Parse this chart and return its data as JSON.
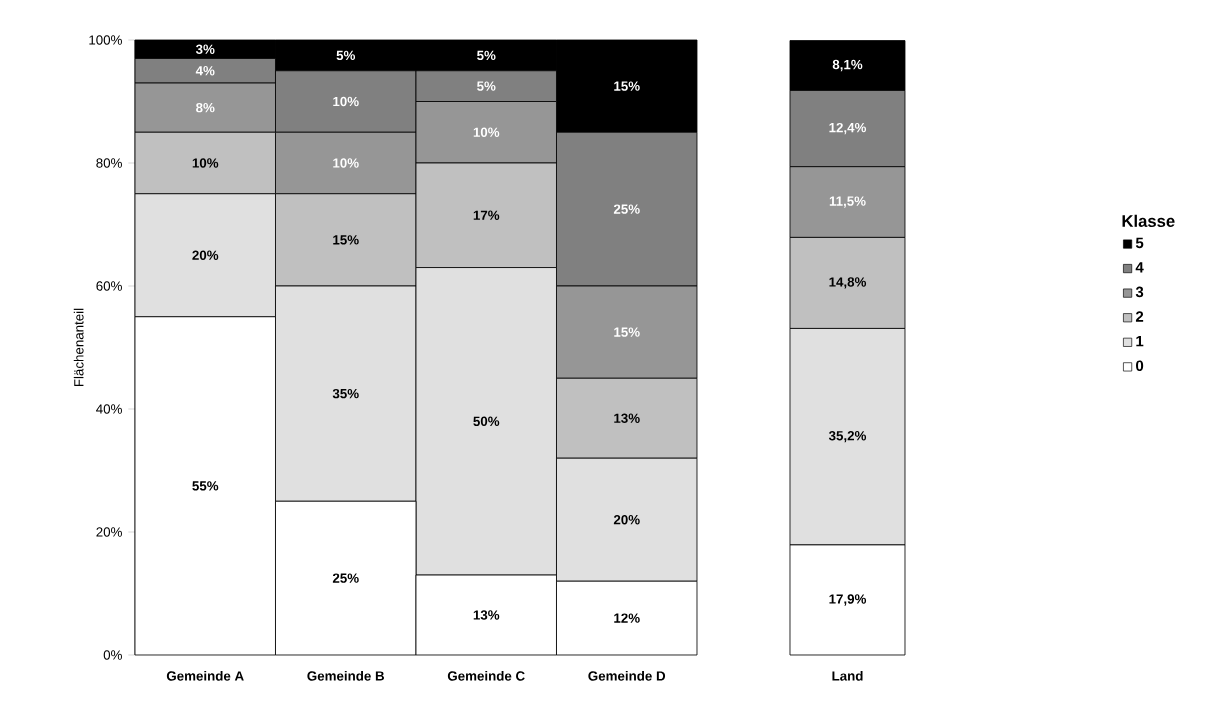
{
  "chart_data": [
    {
      "type": "bar",
      "stacked": true,
      "ylabel": "Flächenanteil",
      "categories": [
        "Gemeinde A",
        "Gemeinde B",
        "Gemeinde C",
        "Gemeinde D"
      ],
      "ylim": [
        0,
        100
      ],
      "yticks": [
        {
          "value": 0,
          "label": "0%"
        },
        {
          "value": 20,
          "label": "20%"
        },
        {
          "value": 40,
          "label": "40%"
        },
        {
          "value": 60,
          "label": "60%"
        },
        {
          "value": 80,
          "label": "80%"
        },
        {
          "value": 100,
          "label": "100%"
        }
      ],
      "legend": false,
      "series": [
        {
          "color": "#ffffff",
          "values": [
            55,
            25,
            13,
            12
          ],
          "value_labels": [
            "55%",
            "25%",
            "13%",
            "12%"
          ]
        },
        {
          "color": "#e0e0e0",
          "values": [
            20,
            35,
            50,
            20
          ],
          "value_labels": [
            "20%",
            "35%",
            "50%",
            "20%"
          ]
        },
        {
          "color": "#c0c0c0",
          "values": [
            10,
            15,
            17,
            13
          ],
          "value_labels": [
            "10%",
            "15%",
            "17%",
            "13%"
          ]
        },
        {
          "color": "#969696",
          "values": [
            8,
            10,
            10,
            15
          ],
          "value_labels": [
            "8%",
            "10%",
            "10%",
            "15%"
          ]
        },
        {
          "color": "#808080",
          "values": [
            4,
            10,
            5,
            25
          ],
          "value_labels": [
            "4%",
            "10%",
            "5%",
            "25%"
          ]
        },
        {
          "color": "#000000",
          "values": [
            3,
            5,
            5,
            15
          ],
          "value_labels": [
            "3%",
            "5%",
            "5%",
            "15%"
          ]
        }
      ]
    },
    {
      "type": "bar",
      "stacked": true,
      "categories": [
        "Land"
      ],
      "ylim": [
        0,
        100
      ],
      "legend": "right",
      "legend_title": "Klasse",
      "series": [
        {
          "name": "0",
          "color": "#ffffff",
          "values": [
            17.9
          ],
          "value_labels": [
            "17,9%"
          ]
        },
        {
          "name": "1",
          "color": "#e0e0e0",
          "values": [
            35.2
          ],
          "value_labels": [
            "35,2%"
          ]
        },
        {
          "name": "2",
          "color": "#c0c0c0",
          "values": [
            14.8
          ],
          "value_labels": [
            "14,8%"
          ]
        },
        {
          "name": "3",
          "color": "#969696",
          "values": [
            11.5
          ],
          "value_labels": [
            "11,5%"
          ]
        },
        {
          "name": "4",
          "color": "#808080",
          "values": [
            12.4
          ],
          "value_labels": [
            "12,4%"
          ]
        },
        {
          "name": "5",
          "color": "#000000",
          "values": [
            8.1
          ],
          "value_labels": [
            "8,1%"
          ]
        }
      ]
    }
  ]
}
